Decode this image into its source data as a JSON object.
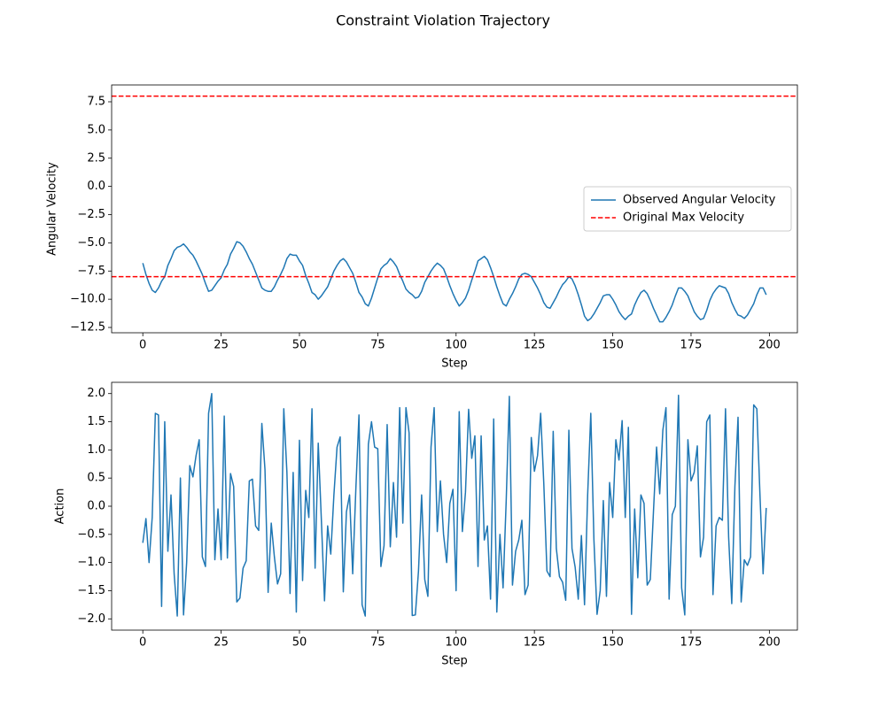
{
  "title": "Constraint Violation Trajectory",
  "chart_data": [
    {
      "type": "line",
      "xlabel": "Step",
      "ylabel": "Angular Velocity",
      "x": [
        0,
        1,
        2,
        3,
        4,
        5,
        6,
        7,
        8,
        9,
        10,
        11,
        12,
        13,
        14,
        15,
        16,
        17,
        18,
        19,
        20,
        21,
        22,
        23,
        24,
        25,
        26,
        27,
        28,
        29,
        30,
        31,
        32,
        33,
        34,
        35,
        36,
        37,
        38,
        39,
        40,
        41,
        42,
        43,
        44,
        45,
        46,
        47,
        48,
        49,
        50,
        51,
        52,
        53,
        54,
        55,
        56,
        57,
        58,
        59,
        60,
        61,
        62,
        63,
        64,
        65,
        66,
        67,
        68,
        69,
        70,
        71,
        72,
        73,
        74,
        75,
        76,
        77,
        78,
        79,
        80,
        81,
        82,
        83,
        84,
        85,
        86,
        87,
        88,
        89,
        90,
        91,
        92,
        93,
        94,
        95,
        96,
        97,
        98,
        99,
        100,
        101,
        102,
        103,
        104,
        105,
        106,
        107,
        108,
        109,
        110,
        111,
        112,
        113,
        114,
        115,
        116,
        117,
        118,
        119,
        120,
        121,
        122,
        123,
        124,
        125,
        126,
        127,
        128,
        129,
        130,
        131,
        132,
        133,
        134,
        135,
        136,
        137,
        138,
        139,
        140,
        141,
        142,
        143,
        144,
        145,
        146,
        147,
        148,
        149,
        150,
        151,
        152,
        153,
        154,
        155,
        156,
        157,
        158,
        159,
        160,
        161,
        162,
        163,
        164,
        165,
        166,
        167,
        168,
        169,
        170,
        171,
        172,
        173,
        174,
        175,
        176,
        177,
        178,
        179,
        180,
        181,
        182,
        183,
        184,
        185,
        186,
        187,
        188,
        189,
        190,
        191,
        192,
        193,
        194,
        195,
        196,
        197,
        198,
        199
      ],
      "series": [
        {
          "name": "Observed Angular Velocity",
          "color": "#1f77b4",
          "values": [
            -6.8,
            -7.8,
            -8.6,
            -9.2,
            -9.4,
            -9.0,
            -8.4,
            -8.0,
            -7.0,
            -6.4,
            -5.7,
            -5.4,
            -5.3,
            -5.1,
            -5.4,
            -5.8,
            -6.1,
            -6.6,
            -7.2,
            -7.8,
            -8.6,
            -9.3,
            -9.2,
            -8.8,
            -8.4,
            -8.1,
            -7.4,
            -6.9,
            -6.0,
            -5.5,
            -4.9,
            -5.0,
            -5.3,
            -5.8,
            -6.4,
            -6.9,
            -7.6,
            -8.3,
            -9.0,
            -9.2,
            -9.3,
            -9.3,
            -8.9,
            -8.3,
            -7.8,
            -7.2,
            -6.4,
            -6.0,
            -6.1,
            -6.1,
            -6.6,
            -7.0,
            -7.9,
            -8.6,
            -9.4,
            -9.6,
            -10.0,
            -9.7,
            -9.3,
            -8.9,
            -8.2,
            -7.5,
            -7.0,
            -6.6,
            -6.4,
            -6.7,
            -7.2,
            -7.7,
            -8.5,
            -9.4,
            -9.8,
            -10.4,
            -10.6,
            -9.9,
            -9.0,
            -8.1,
            -7.3,
            -7.0,
            -6.8,
            -6.4,
            -6.7,
            -7.1,
            -7.8,
            -8.4,
            -9.1,
            -9.4,
            -9.6,
            -9.9,
            -9.8,
            -9.3,
            -8.5,
            -8.0,
            -7.5,
            -7.1,
            -6.8,
            -7.0,
            -7.3,
            -8.0,
            -8.8,
            -9.5,
            -10.1,
            -10.6,
            -10.3,
            -9.9,
            -9.2,
            -8.3,
            -7.5,
            -6.6,
            -6.4,
            -6.2,
            -6.5,
            -7.2,
            -8.0,
            -8.9,
            -9.7,
            -10.4,
            -10.6,
            -10.0,
            -9.5,
            -8.9,
            -8.2,
            -7.8,
            -7.7,
            -7.8,
            -8.0,
            -8.5,
            -9.0,
            -9.6,
            -10.3,
            -10.7,
            -10.8,
            -10.3,
            -9.8,
            -9.2,
            -8.7,
            -8.4,
            -8.0,
            -8.2,
            -8.8,
            -9.6,
            -10.5,
            -11.5,
            -11.9,
            -11.7,
            -11.3,
            -10.8,
            -10.3,
            -9.7,
            -9.6,
            -9.6,
            -10.0,
            -10.5,
            -11.1,
            -11.5,
            -11.8,
            -11.5,
            -11.3,
            -10.5,
            -9.9,
            -9.4,
            -9.2,
            -9.5,
            -10.1,
            -10.8,
            -11.4,
            -12.0,
            -12.0,
            -11.6,
            -11.1,
            -10.5,
            -9.7,
            -9.0,
            -9.0,
            -9.3,
            -9.7,
            -10.4,
            -11.1,
            -11.5,
            -11.8,
            -11.7,
            -11.0,
            -10.1,
            -9.5,
            -9.1,
            -8.8,
            -8.9,
            -9.0,
            -9.5,
            -10.3,
            -10.9,
            -11.4,
            -11.5,
            -11.7,
            -11.4,
            -10.9,
            -10.4,
            -9.6,
            -9.0,
            -9.0,
            -9.6
          ]
        }
      ],
      "reference_lines": {
        "name": "Original Max Velocity",
        "color": "#ff0000",
        "values": [
          8,
          -8
        ]
      },
      "xlim": [
        -9.95,
        208.95
      ],
      "xticks": [
        0,
        25,
        50,
        75,
        100,
        125,
        150,
        175,
        200
      ],
      "ylim": [
        -12.97,
        8.99
      ],
      "yticks": [
        {
          "value": -12.5,
          "label": "−12.5"
        },
        {
          "value": -10,
          "label": "−10.0"
        },
        {
          "value": -7.5,
          "label": "−7.5"
        },
        {
          "value": -5,
          "label": "−5.0"
        },
        {
          "value": -2.5,
          "label": "−2.5"
        },
        {
          "value": 0,
          "label": "0.0"
        },
        2.5,
        {
          "value": 5,
          "label": "5.0"
        },
        7.5
      ],
      "legend": "center right"
    },
    {
      "type": "line",
      "xlabel": "Step",
      "ylabel": "Action",
      "x": [
        0,
        1,
        2,
        3,
        4,
        5,
        6,
        7,
        8,
        9,
        10,
        11,
        12,
        13,
        14,
        15,
        16,
        17,
        18,
        19,
        20,
        21,
        22,
        23,
        24,
        25,
        26,
        27,
        28,
        29,
        30,
        31,
        32,
        33,
        34,
        35,
        36,
        37,
        38,
        39,
        40,
        41,
        42,
        43,
        44,
        45,
        46,
        47,
        48,
        49,
        50,
        51,
        52,
        53,
        54,
        55,
        56,
        57,
        58,
        59,
        60,
        61,
        62,
        63,
        64,
        65,
        66,
        67,
        68,
        69,
        70,
        71,
        72,
        73,
        74,
        75,
        76,
        77,
        78,
        79,
        80,
        81,
        82,
        83,
        84,
        85,
        86,
        87,
        88,
        89,
        90,
        91,
        92,
        93,
        94,
        95,
        96,
        97,
        98,
        99,
        100,
        101,
        102,
        103,
        104,
        105,
        106,
        107,
        108,
        109,
        110,
        111,
        112,
        113,
        114,
        115,
        116,
        117,
        118,
        119,
        120,
        121,
        122,
        123,
        124,
        125,
        126,
        127,
        128,
        129,
        130,
        131,
        132,
        133,
        134,
        135,
        136,
        137,
        138,
        139,
        140,
        141,
        142,
        143,
        144,
        145,
        146,
        147,
        148,
        149,
        150,
        151,
        152,
        153,
        154,
        155,
        156,
        157,
        158,
        159,
        160,
        161,
        162,
        163,
        164,
        165,
        166,
        167,
        168,
        169,
        170,
        171,
        172,
        173,
        174,
        175,
        176,
        177,
        178,
        179,
        180,
        181,
        182,
        183,
        184,
        185,
        186,
        187,
        188,
        189,
        190,
        191,
        192,
        193,
        194,
        195,
        196,
        197,
        198,
        199
      ],
      "series": [
        {
          "color": "#1f77b4",
          "values": [
            -0.65,
            -0.22,
            -1.0,
            -0.2,
            1.65,
            1.62,
            -1.78,
            1.5,
            -0.8,
            0.2,
            -1.2,
            -1.95,
            0.5,
            -1.93,
            -1.0,
            0.72,
            0.52,
            0.9,
            1.18,
            -0.9,
            -1.07,
            1.65,
            2.0,
            -0.95,
            -0.05,
            -0.95,
            1.6,
            -0.92,
            0.58,
            0.35,
            -1.7,
            -1.63,
            -1.1,
            -0.97,
            0.45,
            0.48,
            -0.35,
            -0.43,
            1.47,
            0.65,
            -1.53,
            -0.3,
            -0.9,
            -1.38,
            -1.2,
            1.73,
            0.6,
            -1.55,
            0.6,
            -1.88,
            1.17,
            -1.32,
            0.28,
            -0.2,
            1.73,
            -1.1,
            1.12,
            -0.25,
            -1.68,
            -0.35,
            -0.85,
            0.2,
            1.05,
            1.23,
            -1.52,
            -0.1,
            0.2,
            -1.2,
            0.3,
            1.62,
            -1.75,
            -1.95,
            1.1,
            1.5,
            1.05,
            1.02,
            -1.07,
            -0.7,
            1.45,
            -0.72,
            0.42,
            -0.55,
            1.75,
            -0.3,
            1.75,
            1.3,
            -1.94,
            -1.93,
            -1.15,
            0.2,
            -1.3,
            -1.6,
            1.05,
            1.75,
            -0.45,
            0.45,
            -0.5,
            -1.0,
            0.05,
            0.3,
            -1.5,
            1.68,
            -0.45,
            0.25,
            1.72,
            0.85,
            1.25,
            -1.07,
            1.25,
            -0.6,
            -0.35,
            -1.65,
            1.55,
            -1.88,
            -0.5,
            -1.45,
            0.1,
            1.95,
            -1.4,
            -0.8,
            -0.6,
            -0.25,
            -1.57,
            -1.4,
            1.22,
            0.62,
            0.9,
            1.65,
            0.4,
            -1.15,
            -1.25,
            1.33,
            -0.75,
            -1.25,
            -1.35,
            -1.67,
            1.35,
            -0.75,
            -1.08,
            -1.65,
            -0.52,
            -1.75,
            0.2,
            1.65,
            -0.6,
            -1.92,
            -1.5,
            0.1,
            -1.6,
            0.42,
            -0.2,
            1.18,
            0.82,
            1.52,
            -0.2,
            1.4,
            -1.92,
            -0.05,
            -1.27,
            0.2,
            0.05,
            -1.4,
            -1.3,
            -0.1,
            1.05,
            0.22,
            1.35,
            1.75,
            -1.65,
            -0.15,
            0.0,
            1.97,
            -1.45,
            -1.93,
            1.18,
            0.45,
            0.6,
            1.07,
            -0.9,
            -0.55,
            1.5,
            1.62,
            -1.57,
            -0.35,
            -0.2,
            -0.25,
            1.73,
            -0.55,
            -1.73,
            0.35,
            1.58,
            -1.7,
            -0.95,
            -1.05,
            -0.9,
            1.8,
            1.73,
            0.2,
            -1.2,
            -0.03
          ]
        }
      ],
      "xlim": [
        -9.95,
        208.95
      ],
      "xticks": [
        0,
        25,
        50,
        75,
        100,
        125,
        150,
        175,
        200
      ],
      "ylim": [
        -2.2,
        2.2
      ],
      "yticks": [
        {
          "value": -2,
          "label": "−2.0"
        },
        {
          "value": -1.5,
          "label": "−1.5"
        },
        {
          "value": -1,
          "label": "−1.0"
        },
        {
          "value": -0.5,
          "label": "−0.5"
        },
        {
          "value": 0,
          "label": "0.0"
        },
        0.5,
        {
          "value": 1,
          "label": "1.0"
        },
        1.5,
        {
          "value": 2,
          "label": "2.0"
        }
      ]
    }
  ]
}
